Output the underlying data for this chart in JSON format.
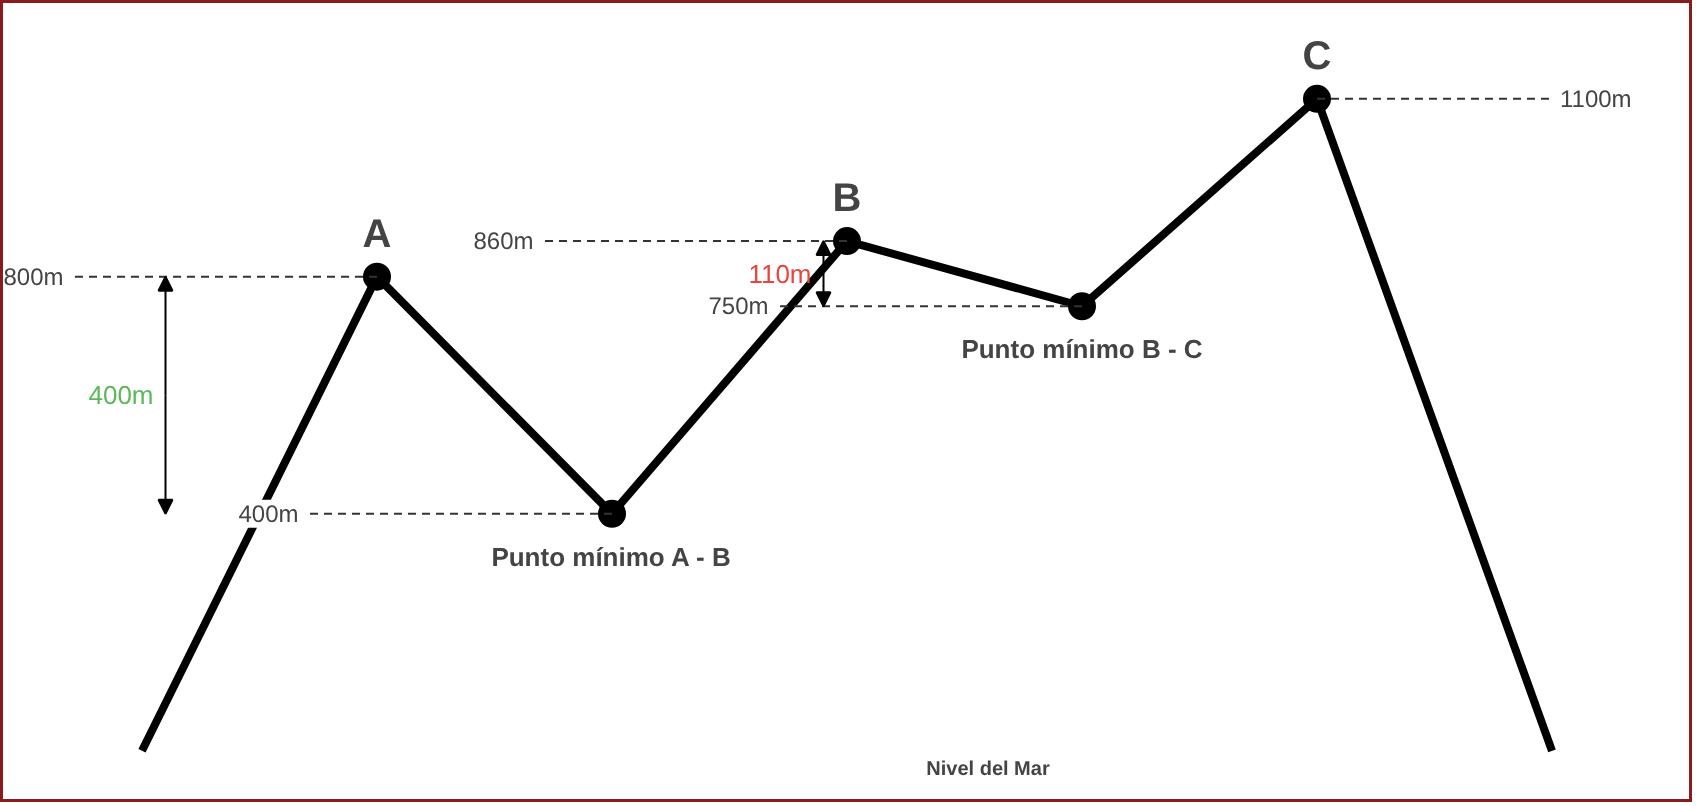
{
  "chart_data": {
    "type": "line",
    "categories": [
      null,
      "A",
      "Punto mínimo A - B",
      "B",
      "Punto mínimo B - C",
      "C",
      null
    ],
    "values": [
      0,
      800,
      400,
      860,
      750,
      1100,
      0
    ],
    "value_labels": [
      null,
      "800m",
      "400m",
      "860m",
      "750m",
      "1100m",
      null
    ],
    "color": "#000000",
    "marker": "circle",
    "line_style": "solid",
    "grid": false,
    "tick_labels": false,
    "annotations": [
      "400m",
      "110m",
      "Nivel del Mar"
    ]
  }
}
